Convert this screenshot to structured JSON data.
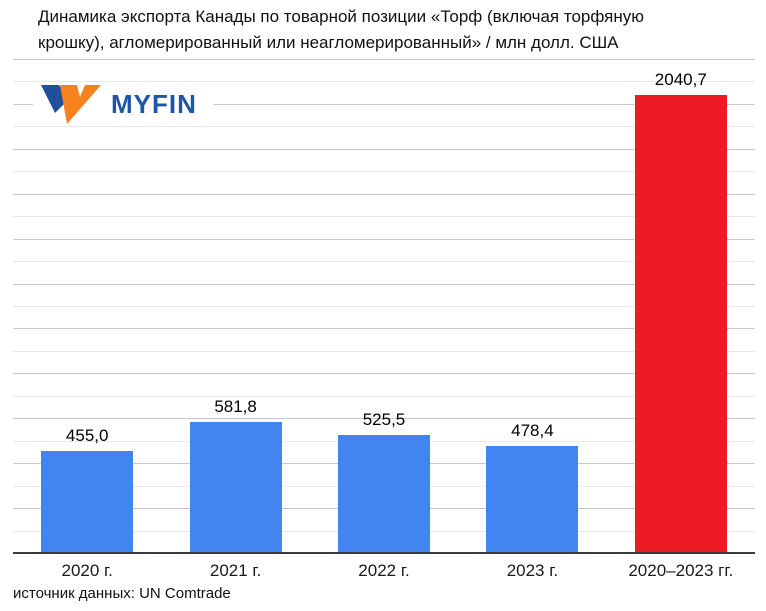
{
  "header": {
    "title_line1": "Динамика экспорта Канады по товарной позиции «Торф (включая торфяную",
    "title_line2": "крошку), агломерированный или неагломерированный» / млн долл. США"
  },
  "logo": {
    "text": "MYFIN",
    "icon": "myfin-double-v-icon",
    "text_color": "#1d55a8",
    "icon_blue": "#204f9e",
    "icon_orange": "#f5821f"
  },
  "source_note": "источник данных: UN Comtrade",
  "chart_data": {
    "type": "bar",
    "title": "Динамика экспорта Канады по товарной позиции «Торф (включая торфяную крошку), агломерированный или неагломерированный» / млн долл. США",
    "unit": "млн долл. США",
    "categories": [
      "2020 г.",
      "2021 г.",
      "2022 г.",
      "2023 г.",
      "2020–2023 гг."
    ],
    "values": [
      455.0,
      581.8,
      525.5,
      478.4,
      2040.7
    ],
    "value_labels": [
      "455,0",
      "581,8",
      "525,5",
      "478,4",
      "2040,7"
    ],
    "bar_colors": [
      "#4284f0",
      "#4284f0",
      "#4284f0",
      "#4284f0",
      "#ed1c24"
    ],
    "ylim": [
      0,
      2200
    ],
    "gridline_step": 100,
    "major_gridline_step": 200,
    "grid": true,
    "legend": false,
    "xlabel": "",
    "ylabel": ""
  },
  "style": {
    "background": "#ffffff",
    "grid_light": "#e8e8e8",
    "grid_major": "#c9c9c9",
    "axis_color": "#3b3b3b",
    "bar_blue": "#4284f0",
    "bar_red": "#ed1c24"
  }
}
